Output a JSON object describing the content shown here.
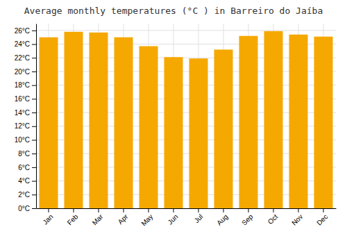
{
  "chart_data": {
    "type": "bar",
    "title": "Average monthly temperatures (°C ) in Barreiro do Jaíba",
    "categories": [
      "Jan",
      "Feb",
      "Mar",
      "Apr",
      "May",
      "Jun",
      "Jul",
      "Aug",
      "Sep",
      "Oct",
      "Nov",
      "Dec"
    ],
    "values": [
      25.0,
      25.8,
      25.7,
      25.0,
      23.7,
      22.1,
      21.9,
      23.2,
      25.2,
      25.9,
      25.4,
      25.1
    ],
    "color": "#F5A800",
    "ylim": [
      0,
      27
    ],
    "yticks": [
      {
        "value": 0,
        "label": "0°C"
      },
      {
        "value": 2,
        "label": "2°C"
      },
      {
        "value": 4,
        "label": "4°C"
      },
      {
        "value": 6,
        "label": "6°C"
      },
      {
        "value": 8,
        "label": "8°C"
      },
      {
        "value": 10,
        "label": "10°C"
      },
      {
        "value": 12,
        "label": "12°C"
      },
      {
        "value": 14,
        "label": "14°C"
      },
      {
        "value": 16,
        "label": "16°C"
      },
      {
        "value": 18,
        "label": "18°C"
      },
      {
        "value": 20,
        "label": "20°C"
      },
      {
        "value": 22,
        "label": "22°C"
      },
      {
        "value": 24,
        "label": "24°C"
      },
      {
        "value": 26,
        "label": "26°C"
      }
    ],
    "grid": true
  }
}
